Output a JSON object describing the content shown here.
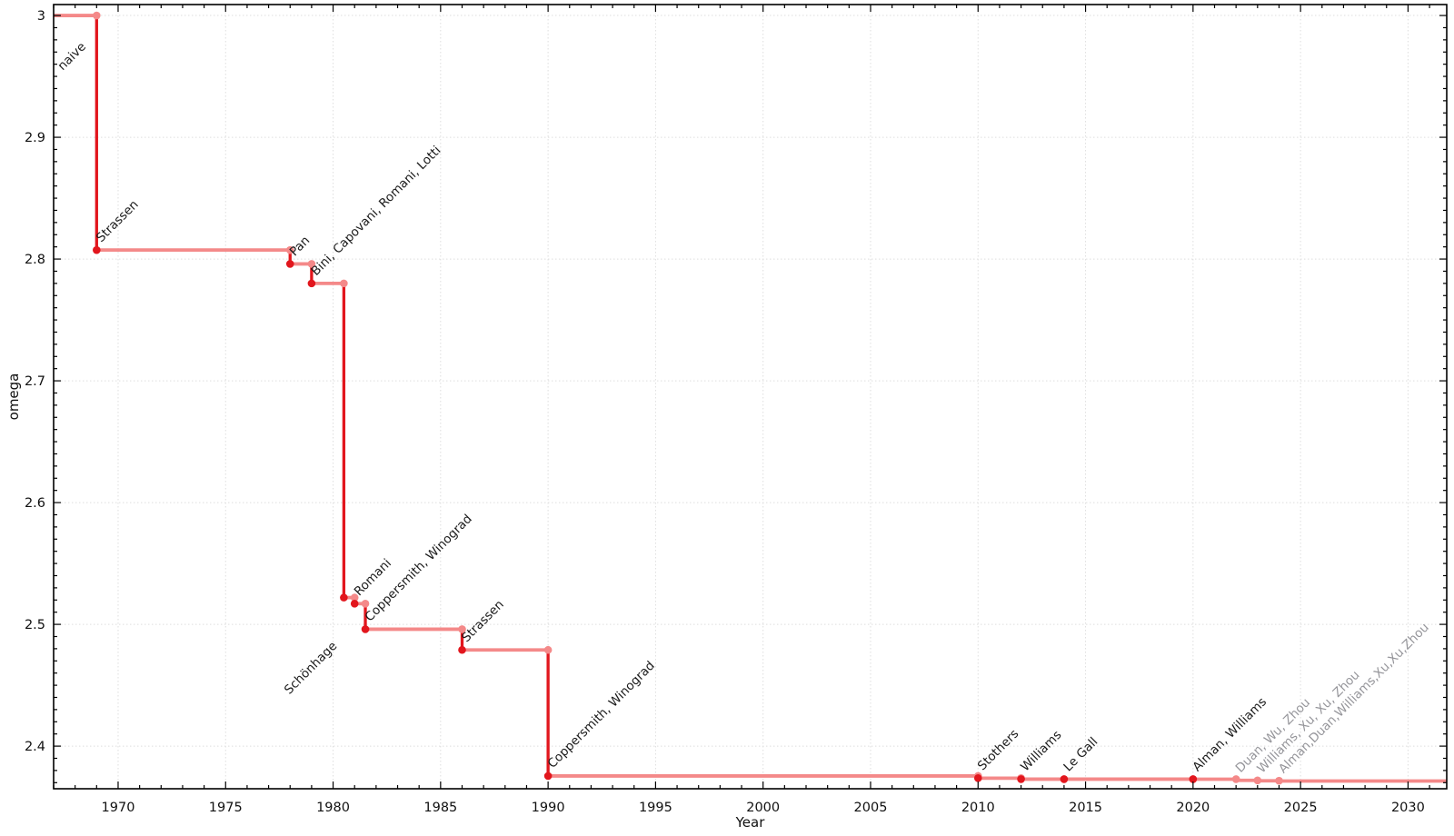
{
  "chart_data": {
    "type": "line",
    "step": "post",
    "title": "",
    "xlabel": "Year",
    "ylabel": "omega",
    "xlim": [
      1967,
      2031.8
    ],
    "ylim": [
      2.365,
      3.009
    ],
    "grid": true,
    "legend": "none",
    "xticks": [
      1970,
      1975,
      1980,
      1985,
      1990,
      1995,
      2000,
      2005,
      2010,
      2015,
      2020,
      2025,
      2030
    ],
    "xtick_labels": [
      "1970",
      "1975",
      "1980",
      "1985",
      "1990",
      "1995",
      "2000",
      "2005",
      "2010",
      "2015",
      "2020",
      "2025",
      "2030"
    ],
    "yticks": [
      2.4,
      2.5,
      2.6,
      2.7,
      2.8,
      2.9,
      3.0
    ],
    "ytick_labels": [
      "2.4",
      "2.5",
      "2.6",
      "2.7",
      "2.8",
      "2.9",
      "3"
    ],
    "x_minor_step": 1,
    "y_minor_step": 0.01,
    "colors": {
      "step_line": "#f48989",
      "drop_line": "#e2161d",
      "strong_marker": "#e2161d",
      "corner_marker": "#f48989",
      "label_text": "#1a1a1a",
      "muted_label_text": "#95959a",
      "tick_text": "#111111",
      "grid_line": "#dedede",
      "axis_line": "#000000"
    },
    "events": [
      {
        "label": "naive",
        "year": 1967,
        "omega": 3.0,
        "marker": "none",
        "muted": false,
        "label_offset": [
          10,
          61
        ]
      },
      {
        "label": "Strassen",
        "year": 1969,
        "omega": 2.8074,
        "marker": "strong",
        "muted": false
      },
      {
        "label": "Pan",
        "year": 1978,
        "omega": 2.796,
        "marker": "strong",
        "muted": false
      },
      {
        "label": "Bini, Capovani, Romani, Lotti",
        "year": 1979,
        "omega": 2.78,
        "marker": "strong",
        "muted": false
      },
      {
        "label": "Schönhage",
        "year": 1980.5,
        "omega": 2.522,
        "marker": "strong",
        "muted": false,
        "label_offset": [
          -60,
          107
        ]
      },
      {
        "label": "Romani",
        "year": 1981,
        "omega": 2.517,
        "marker": "strong",
        "muted": false
      },
      {
        "label": "Coppersmith, Winograd",
        "year": 1981.5,
        "omega": 2.496,
        "marker": "strong",
        "muted": false
      },
      {
        "label": "Strassen",
        "year": 1986,
        "omega": 2.479,
        "marker": "strong",
        "muted": false
      },
      {
        "label": "Coppersmith, Winograd",
        "year": 1990,
        "omega": 2.3755,
        "marker": "strong",
        "muted": false
      },
      {
        "label": "Stothers",
        "year": 2010,
        "omega": 2.3737,
        "marker": "strong",
        "muted": false
      },
      {
        "label": "Williams",
        "year": 2012,
        "omega": 2.3729,
        "marker": "strong",
        "muted": false
      },
      {
        "label": "Le Gall",
        "year": 2014,
        "omega": 2.37287,
        "marker": "strong",
        "muted": false
      },
      {
        "label": "Alman, Williams",
        "year": 2020,
        "omega": 2.37286,
        "marker": "strong",
        "muted": false
      },
      {
        "label": "Duan, Wu, Zhou",
        "year": 2022,
        "omega": 2.37188,
        "marker": "none",
        "muted": true
      },
      {
        "label": "Williams, Xu, Xu, Zhou",
        "year": 2023,
        "omega": 2.37155,
        "marker": "none",
        "muted": true
      },
      {
        "label": "Alman,Duan,Williams,Xu,Xu,Zhou",
        "year": 2024,
        "omega": 2.37134,
        "marker": "none",
        "muted": true
      }
    ]
  }
}
